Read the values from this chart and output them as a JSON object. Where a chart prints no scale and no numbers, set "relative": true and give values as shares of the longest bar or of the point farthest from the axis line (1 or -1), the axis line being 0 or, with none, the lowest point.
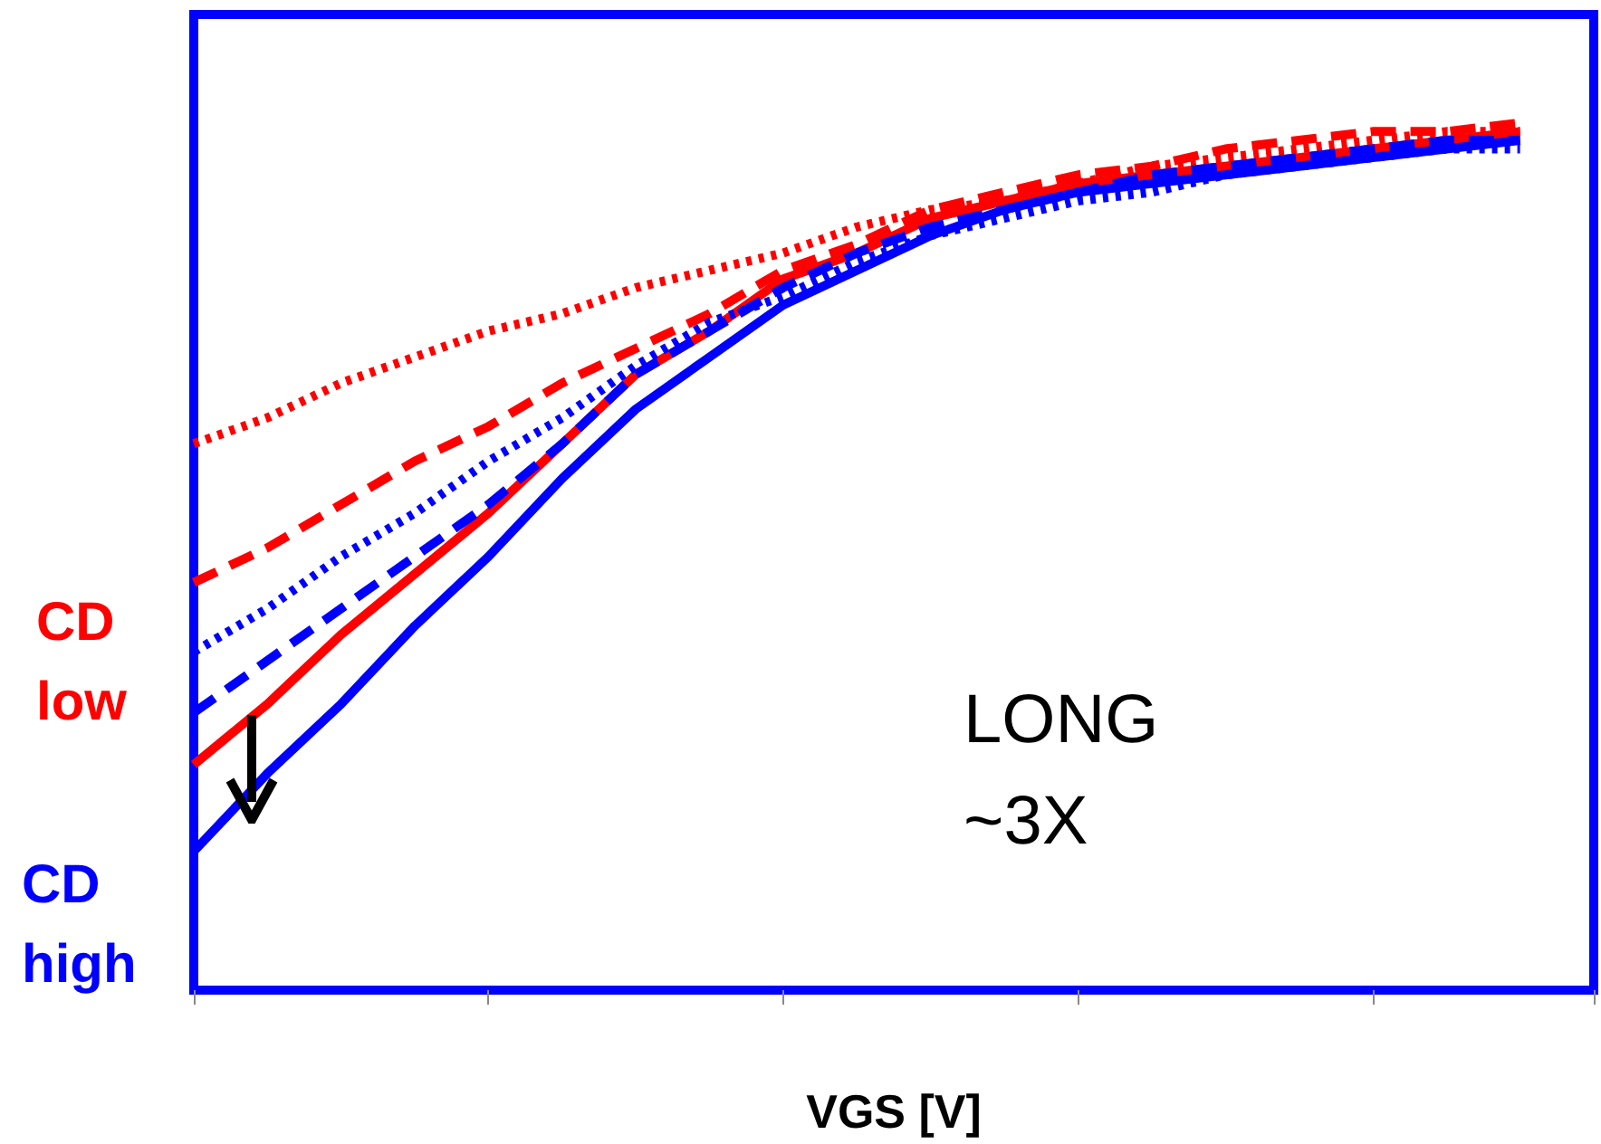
{
  "chart_data": {
    "type": "line",
    "relative": true,
    "xlabel": "VGS [V]",
    "grid": false,
    "marker": "none",
    "categories": [
      null,
      null,
      null,
      null,
      null,
      null,
      null,
      null,
      null,
      null,
      null,
      null,
      null,
      null,
      null,
      null,
      null,
      null,
      null,
      null
    ],
    "series": [
      {
        "color": "#ff0000",
        "line_style": "solid",
        "values": [
          0.26,
          0.33,
          0.41,
          0.48,
          0.55,
          0.63,
          0.71,
          0.76,
          0.82,
          0.85,
          0.89,
          0.91,
          0.93,
          0.94,
          0.95,
          0.96,
          0.97,
          0.98,
          0.99,
          null
        ]
      },
      {
        "color": "#ff0000",
        "line_style": "dashed",
        "values": [
          0.47,
          0.51,
          0.56,
          0.61,
          0.65,
          0.7,
          0.74,
          0.78,
          0.83,
          0.86,
          0.9,
          0.92,
          0.94,
          0.95,
          0.97,
          0.98,
          0.99,
          0.99,
          1,
          null
        ]
      },
      {
        "color": "#ff0000",
        "line_style": "dotted",
        "values": [
          0.63,
          0.66,
          0.7,
          0.73,
          0.76,
          0.78,
          0.81,
          0.83,
          0.85,
          0.88,
          0.9,
          0.91,
          0.93,
          0.95,
          0.96,
          0.97,
          0.98,
          0.99,
          0.99,
          null
        ]
      },
      {
        "color": "#0000ff",
        "line_style": "solid",
        "values": [
          0.16,
          0.25,
          0.33,
          0.42,
          0.5,
          0.59,
          0.67,
          0.73,
          0.79,
          0.83,
          0.87,
          0.9,
          0.92,
          0.93,
          0.94,
          0.95,
          0.96,
          0.97,
          0.98,
          null
        ]
      },
      {
        "color": "#0000ff",
        "line_style": "dashed",
        "values": [
          0.32,
          0.38,
          0.44,
          0.5,
          0.56,
          0.63,
          0.71,
          0.76,
          0.81,
          0.85,
          0.88,
          0.9,
          0.92,
          0.94,
          0.95,
          0.96,
          0.97,
          0.98,
          0.98,
          null
        ]
      },
      {
        "color": "#0000ff",
        "line_style": "dotted",
        "values": [
          0.39,
          0.44,
          0.5,
          0.55,
          0.61,
          0.66,
          0.72,
          0.77,
          0.8,
          0.84,
          0.87,
          0.89,
          0.91,
          0.92,
          0.94,
          0.95,
          0.96,
          0.97,
          0.97,
          null
        ]
      }
    ],
    "annotations": [
      "CD low",
      "CD high",
      "LONG ~3X"
    ]
  }
}
